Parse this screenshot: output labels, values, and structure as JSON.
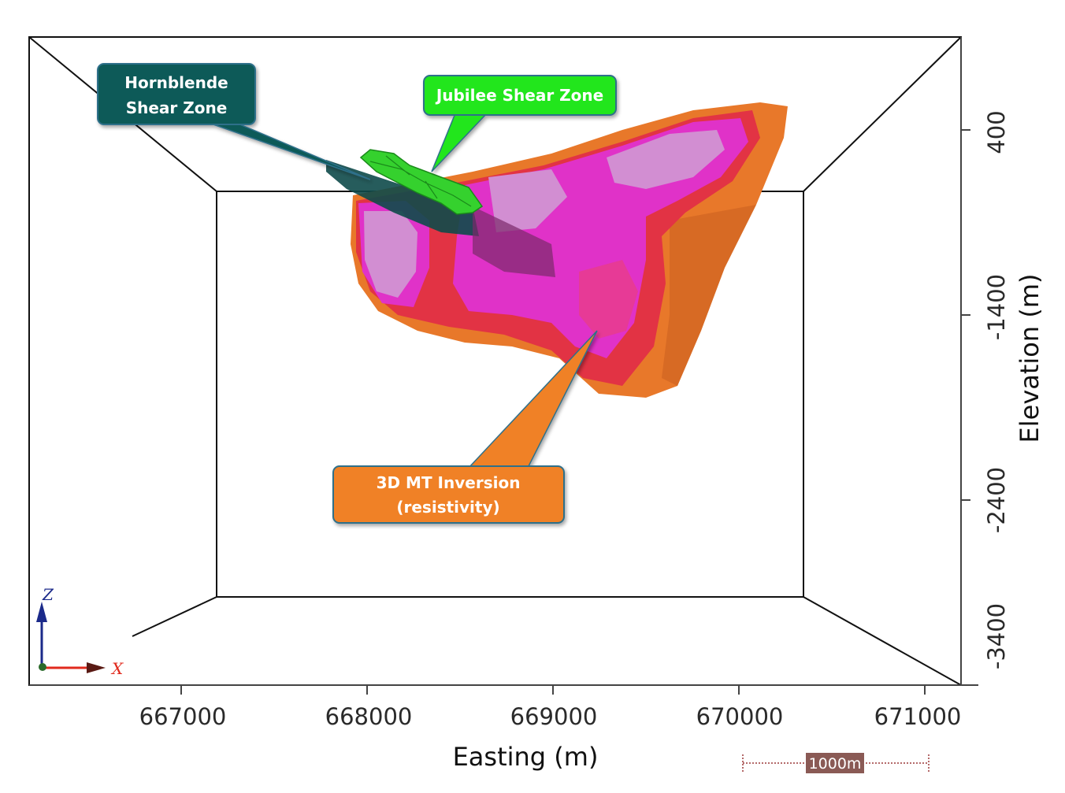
{
  "axes": {
    "x_title": "Easting (m)",
    "y_title": "Elevation (m)",
    "x_ticks": [
      "667000",
      "668000",
      "669000",
      "670000",
      "671000"
    ],
    "y_ticks": [
      "400",
      "-1400",
      "-2400",
      "-3400"
    ]
  },
  "callouts": {
    "hornblende": {
      "line1": "Hornblende",
      "line2": "Shear Zone",
      "color": "#0f5a58"
    },
    "jubilee": {
      "line1": "Jubilee Shear Zone",
      "color": "#22e61e"
    },
    "mt": {
      "line1": "3D MT Inversion",
      "line2": "(resistivity)",
      "color": "#f08126"
    }
  },
  "triad": {
    "z": "Z",
    "x": "X"
  },
  "scale_bar": {
    "label": "1000m"
  },
  "colors": {
    "orange": "#e8782a",
    "red": "#e23344",
    "magenta": "#e032c8",
    "lavender": "#d28ed2",
    "shear_green": "#35d12e",
    "shear_teal": "#0e4a4a"
  }
}
